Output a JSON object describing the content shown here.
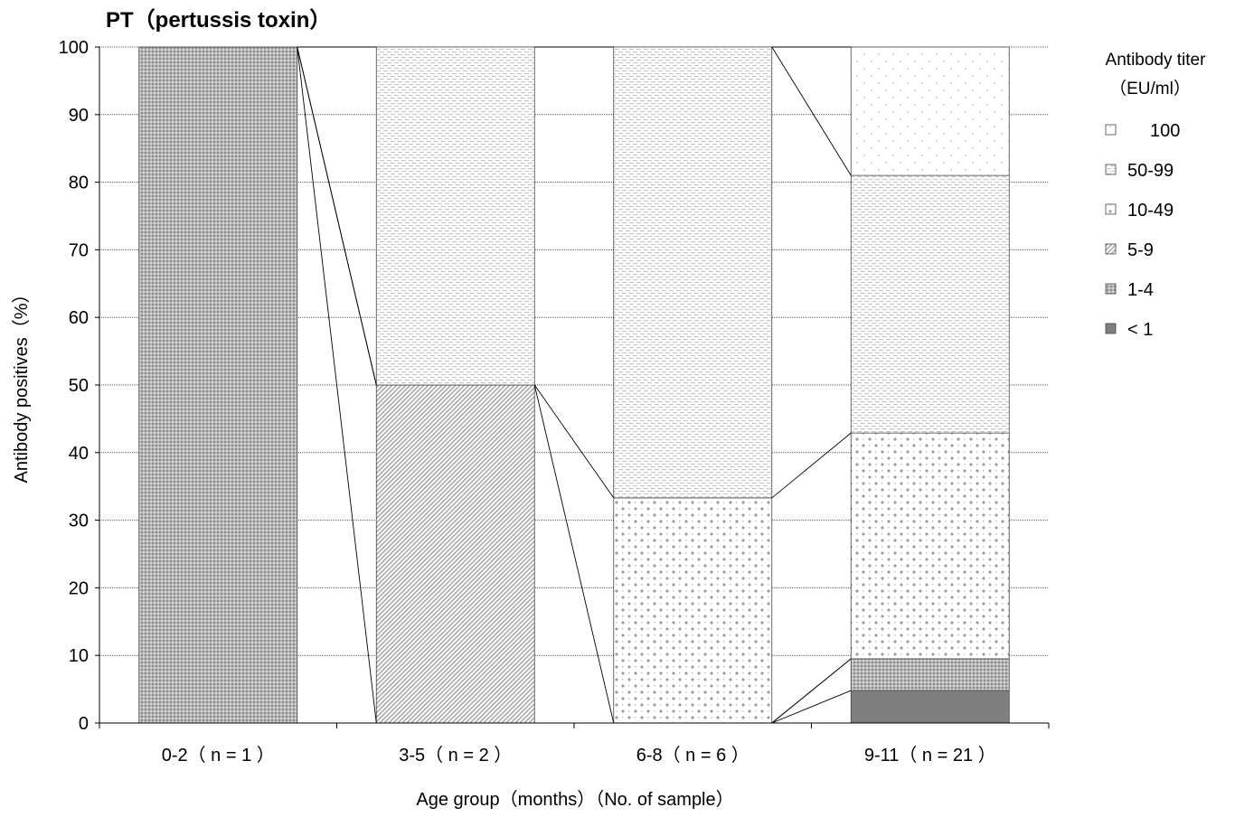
{
  "chart_data": {
    "type": "bar",
    "stacked": true,
    "title": "PT（pertussis toxin）",
    "xlabel": "Age group（months）（No. of sample）",
    "ylabel": "Antibody positives（%）",
    "ylim": [
      0,
      100
    ],
    "yticks": [
      0,
      10,
      20,
      30,
      40,
      50,
      60,
      70,
      80,
      90,
      100
    ],
    "grid": true,
    "grid_style": "dotted horizontal",
    "series_connectors": true,
    "legend_title": [
      "Antibody titer",
      "（EU/ml）"
    ],
    "legend_position": "right",
    "categories": [
      "0-2（ n = 1 ）",
      "3-5（ n = 2 ）",
      "6-8（ n = 6 ）",
      "9-11（ n = 21 ）"
    ],
    "series": [
      {
        "name": "< 1",
        "pattern": "solid-gray",
        "values": [
          0,
          0,
          0,
          4.8
        ]
      },
      {
        "name": "1-4",
        "pattern": "dense-dots",
        "values": [
          100,
          0,
          0,
          4.7
        ]
      },
      {
        "name": "5-9",
        "pattern": "diagonal",
        "values": [
          0,
          50,
          0,
          0
        ]
      },
      {
        "name": "10-49",
        "pattern": "diamond-dots",
        "values": [
          0,
          0,
          33.3,
          33.4
        ]
      },
      {
        "name": "50-99",
        "pattern": "dashed-hatch",
        "values": [
          0,
          50,
          66.7,
          38.1
        ]
      },
      {
        "name": "100",
        "pattern": "sparse-dots",
        "values": [
          0,
          0,
          0,
          19.0
        ]
      }
    ]
  }
}
